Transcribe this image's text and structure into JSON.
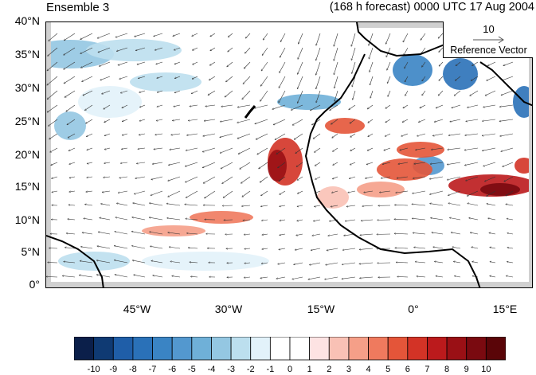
{
  "title_left": "Ensemble 3",
  "title_right": "(168 h forecast) 0000 UTC 17 Aug 2004",
  "y_ticks": [
    "40°N",
    "35°N",
    "30°N",
    "25°N",
    "20°N",
    "15°N",
    "10°N",
    "5°N",
    "0°"
  ],
  "x_ticks": [
    "45°W",
    "30°W",
    "15°W",
    "0°",
    "15°E"
  ],
  "reference_vector": {
    "magnitude": "10",
    "label": "Reference Vector"
  },
  "colorbar": {
    "labels": [
      "-10",
      "-9",
      "-8",
      "-7",
      "-6",
      "-5",
      "-4",
      "-3",
      "-2",
      "-1",
      "0",
      "1",
      "2",
      "3",
      "4",
      "5",
      "6",
      "7",
      "8",
      "9",
      "10"
    ],
    "colors": [
      "#0b1f4a",
      "#0f3a73",
      "#1f5ea8",
      "#2a71b8",
      "#3a84c4",
      "#5398cf",
      "#6fb0d8",
      "#94c7e2",
      "#bcdfee",
      "#e2f2fa",
      "#ffffff",
      "#ffffff",
      "#fde3e3",
      "#f9c1b5",
      "#f59f88",
      "#ef7a5e",
      "#e45539",
      "#d33326",
      "#bb1a1c",
      "#9a1015",
      "#7a0a10",
      "#5a0508"
    ]
  },
  "map": {
    "lat_range": [
      0,
      40
    ],
    "lon_range": [
      -60,
      20
    ],
    "field": "shaded anomaly with wind vectors",
    "land_mask_color": "#d0d0d0"
  }
}
